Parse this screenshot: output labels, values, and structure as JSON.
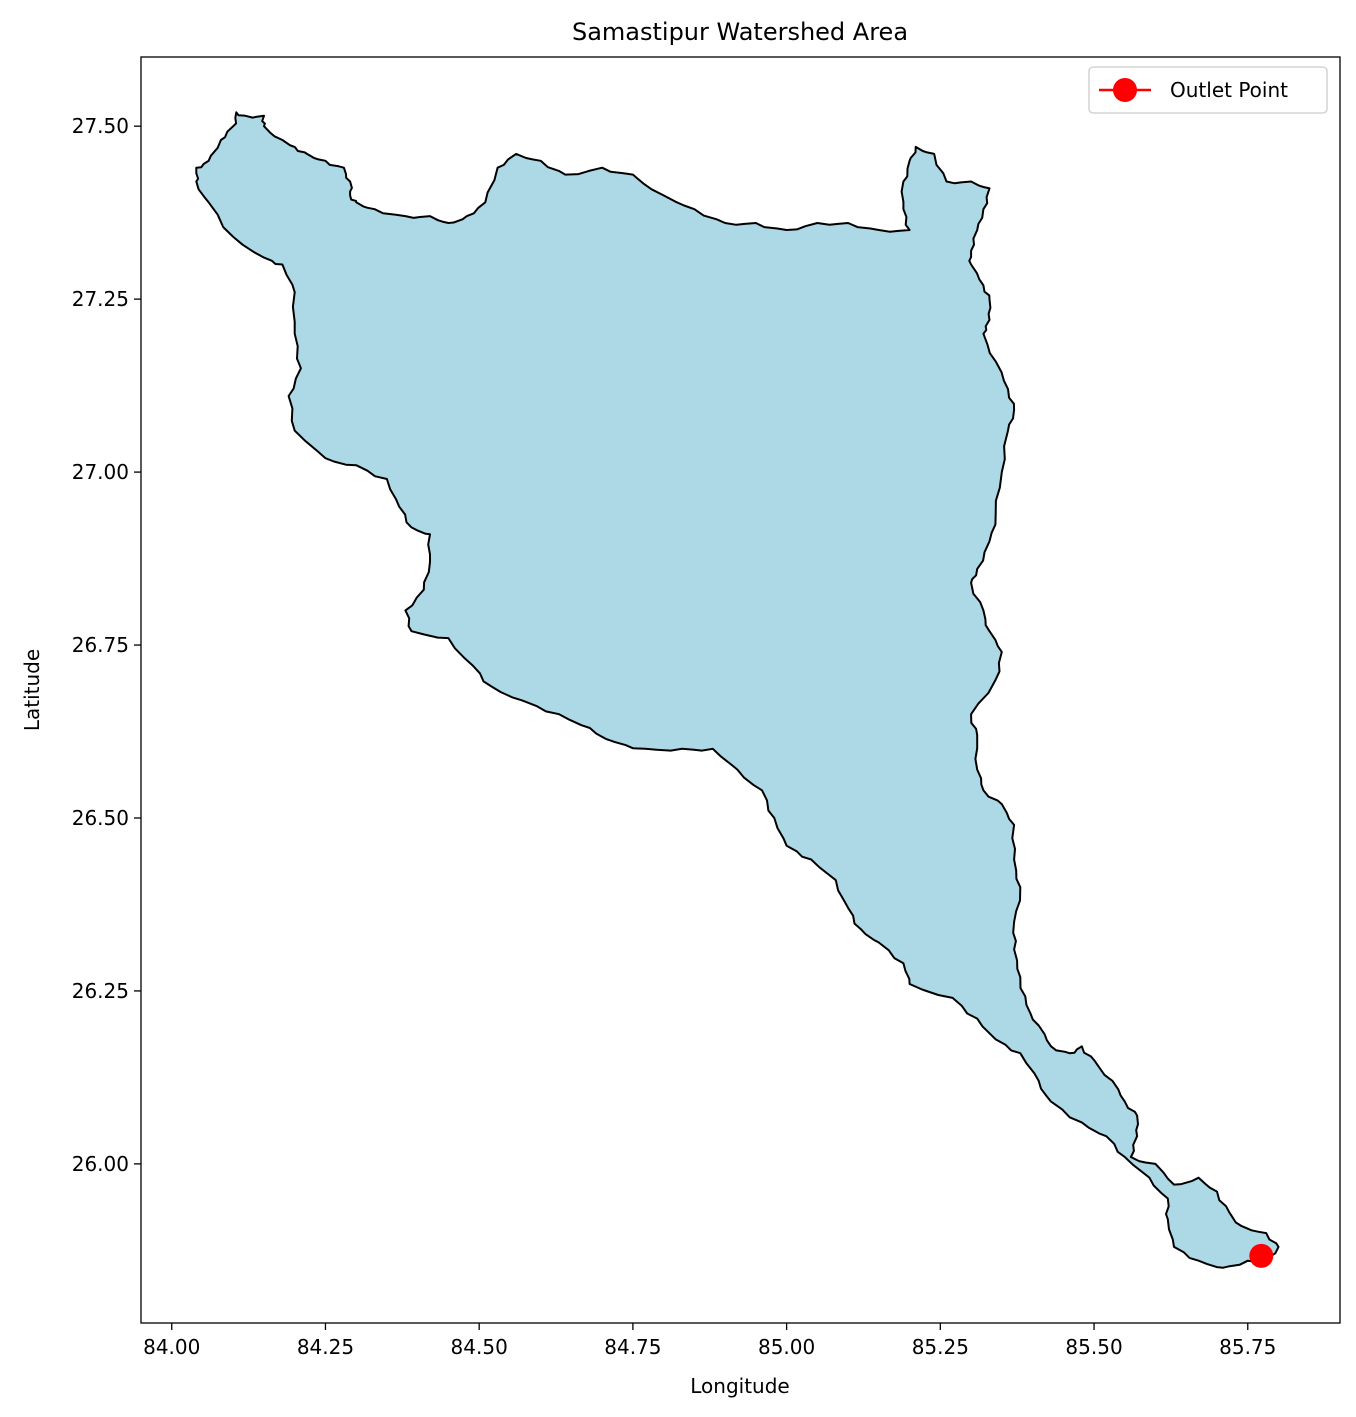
{
  "chart_data": {
    "type": "map",
    "title": "Samastipur Watershed Area",
    "xlabel": "Longitude",
    "ylabel": "Latitude",
    "xlim": [
      83.95,
      85.9
    ],
    "ylim": [
      25.77,
      27.6
    ],
    "x_ticks": [
      "84.00",
      "84.25",
      "84.50",
      "84.75",
      "85.00",
      "85.25",
      "85.50",
      "85.75"
    ],
    "y_ticks": [
      "26.00",
      "26.25",
      "26.50",
      "26.75",
      "27.00",
      "27.25",
      "27.50"
    ],
    "x_tick_values": [
      84.0,
      84.25,
      84.5,
      84.75,
      85.0,
      85.25,
      85.5,
      85.75
    ],
    "y_tick_values": [
      26.0,
      26.25,
      26.5,
      26.75,
      27.0,
      27.25,
      27.5
    ],
    "grid": false,
    "legend_position": "top-right",
    "legend": [
      {
        "label": "Outlet Point",
        "marker": "circle",
        "color": "#ff0000"
      }
    ],
    "outlet_point": {
      "lon": 85.772,
      "lat": 25.867
    },
    "watershed": {
      "fill": "#add8e6",
      "edge": "#000000",
      "boundary": [
        [
          84.04,
          27.44
        ],
        [
          84.06,
          27.45
        ],
        [
          84.08,
          27.48
        ],
        [
          84.1,
          27.5
        ],
        [
          84.105,
          27.52
        ],
        [
          84.12,
          27.515
        ],
        [
          84.15,
          27.515
        ],
        [
          84.15,
          27.5
        ],
        [
          84.18,
          27.48
        ],
        [
          84.2,
          27.47
        ],
        [
          84.22,
          27.46
        ],
        [
          84.25,
          27.45
        ],
        [
          84.28,
          27.44
        ],
        [
          84.29,
          27.42
        ],
        [
          84.29,
          27.4
        ],
        [
          84.3,
          27.39
        ],
        [
          84.33,
          27.38
        ],
        [
          84.38,
          27.37
        ],
        [
          84.42,
          27.37
        ],
        [
          84.45,
          27.36
        ],
        [
          84.48,
          27.37
        ],
        [
          84.51,
          27.39
        ],
        [
          84.53,
          27.44
        ],
        [
          84.56,
          27.46
        ],
        [
          84.6,
          27.45
        ],
        [
          84.64,
          27.43
        ],
        [
          84.7,
          27.44
        ],
        [
          84.75,
          27.43
        ],
        [
          84.8,
          27.4
        ],
        [
          84.85,
          27.38
        ],
        [
          84.9,
          27.36
        ],
        [
          84.95,
          27.36
        ],
        [
          85.0,
          27.35
        ],
        [
          85.05,
          27.36
        ],
        [
          85.1,
          27.36
        ],
        [
          85.15,
          27.35
        ],
        [
          85.2,
          27.35
        ],
        [
          85.19,
          27.38
        ],
        [
          85.19,
          27.42
        ],
        [
          85.2,
          27.45
        ],
        [
          85.21,
          27.47
        ],
        [
          85.24,
          27.46
        ],
        [
          85.26,
          27.42
        ],
        [
          85.3,
          27.42
        ],
        [
          85.33,
          27.41
        ],
        [
          85.32,
          27.38
        ],
        [
          85.31,
          27.35
        ],
        [
          85.3,
          27.32
        ],
        [
          85.3,
          27.3
        ],
        [
          85.32,
          27.27
        ],
        [
          85.33,
          27.25
        ],
        [
          85.33,
          27.22
        ],
        [
          85.32,
          27.2
        ],
        [
          85.34,
          27.16
        ],
        [
          85.36,
          27.12
        ],
        [
          85.37,
          27.09
        ],
        [
          85.36,
          27.06
        ],
        [
          85.35,
          27.0
        ],
        [
          85.34,
          26.94
        ],
        [
          85.33,
          26.9
        ],
        [
          85.31,
          26.86
        ],
        [
          85.3,
          26.84
        ],
        [
          85.32,
          26.8
        ],
        [
          85.33,
          26.77
        ],
        [
          85.35,
          26.74
        ],
        [
          85.34,
          26.7
        ],
        [
          85.3,
          26.65
        ],
        [
          85.31,
          26.62
        ],
        [
          85.31,
          26.57
        ],
        [
          85.32,
          26.54
        ],
        [
          85.35,
          26.52
        ],
        [
          85.37,
          26.49
        ],
        [
          85.37,
          26.44
        ],
        [
          85.38,
          26.4
        ],
        [
          85.37,
          26.35
        ],
        [
          85.37,
          26.31
        ],
        [
          85.38,
          26.27
        ],
        [
          85.39,
          26.23
        ],
        [
          85.41,
          26.2
        ],
        [
          85.43,
          26.17
        ],
        [
          85.46,
          26.16
        ],
        [
          85.48,
          26.17
        ],
        [
          85.5,
          26.15
        ],
        [
          85.53,
          26.12
        ],
        [
          85.55,
          26.09
        ],
        [
          85.57,
          26.07
        ],
        [
          85.57,
          26.04
        ],
        [
          85.56,
          26.01
        ],
        [
          85.6,
          26.0
        ],
        [
          85.63,
          25.97
        ],
        [
          85.67,
          25.98
        ],
        [
          85.7,
          25.96
        ],
        [
          85.72,
          25.93
        ],
        [
          85.74,
          25.91
        ],
        [
          85.78,
          25.9
        ],
        [
          85.8,
          25.88
        ],
        [
          85.78,
          25.86
        ],
        [
          85.75,
          25.86
        ],
        [
          85.71,
          25.85
        ],
        [
          85.67,
          25.86
        ],
        [
          85.63,
          25.88
        ],
        [
          85.62,
          25.92
        ],
        [
          85.62,
          25.95
        ],
        [
          85.59,
          25.98
        ],
        [
          85.55,
          26.01
        ],
        [
          85.52,
          26.04
        ],
        [
          85.48,
          26.06
        ],
        [
          85.43,
          26.09
        ],
        [
          85.41,
          26.12
        ],
        [
          85.38,
          26.16
        ],
        [
          85.34,
          26.18
        ],
        [
          85.31,
          26.21
        ],
        [
          85.27,
          26.24
        ],
        [
          85.2,
          26.26
        ],
        [
          85.19,
          26.29
        ],
        [
          85.15,
          26.32
        ],
        [
          85.12,
          26.34
        ],
        [
          85.1,
          26.37
        ],
        [
          85.08,
          26.41
        ],
        [
          85.04,
          26.44
        ],
        [
          85.0,
          26.46
        ],
        [
          84.98,
          26.5
        ],
        [
          84.96,
          26.54
        ],
        [
          84.92,
          26.57
        ],
        [
          84.88,
          26.6
        ],
        [
          84.83,
          26.6
        ],
        [
          84.77,
          26.6
        ],
        [
          84.72,
          26.61
        ],
        [
          84.68,
          26.63
        ],
        [
          84.63,
          26.65
        ],
        [
          84.57,
          26.67
        ],
        [
          84.52,
          26.69
        ],
        [
          84.49,
          26.72
        ],
        [
          84.45,
          26.76
        ],
        [
          84.39,
          26.77
        ],
        [
          84.38,
          26.8
        ],
        [
          84.41,
          26.83
        ],
        [
          84.42,
          26.87
        ],
        [
          84.42,
          26.91
        ],
        [
          84.39,
          26.92
        ],
        [
          84.37,
          26.95
        ],
        [
          84.35,
          26.99
        ],
        [
          84.3,
          27.01
        ],
        [
          84.25,
          27.02
        ],
        [
          84.2,
          27.06
        ],
        [
          84.19,
          27.11
        ],
        [
          84.21,
          27.15
        ],
        [
          84.2,
          27.2
        ],
        [
          84.2,
          27.26
        ],
        [
          84.18,
          27.3
        ],
        [
          84.15,
          27.31
        ],
        [
          84.1,
          27.34
        ],
        [
          84.06,
          27.39
        ],
        [
          84.04,
          27.42
        ]
      ]
    }
  }
}
